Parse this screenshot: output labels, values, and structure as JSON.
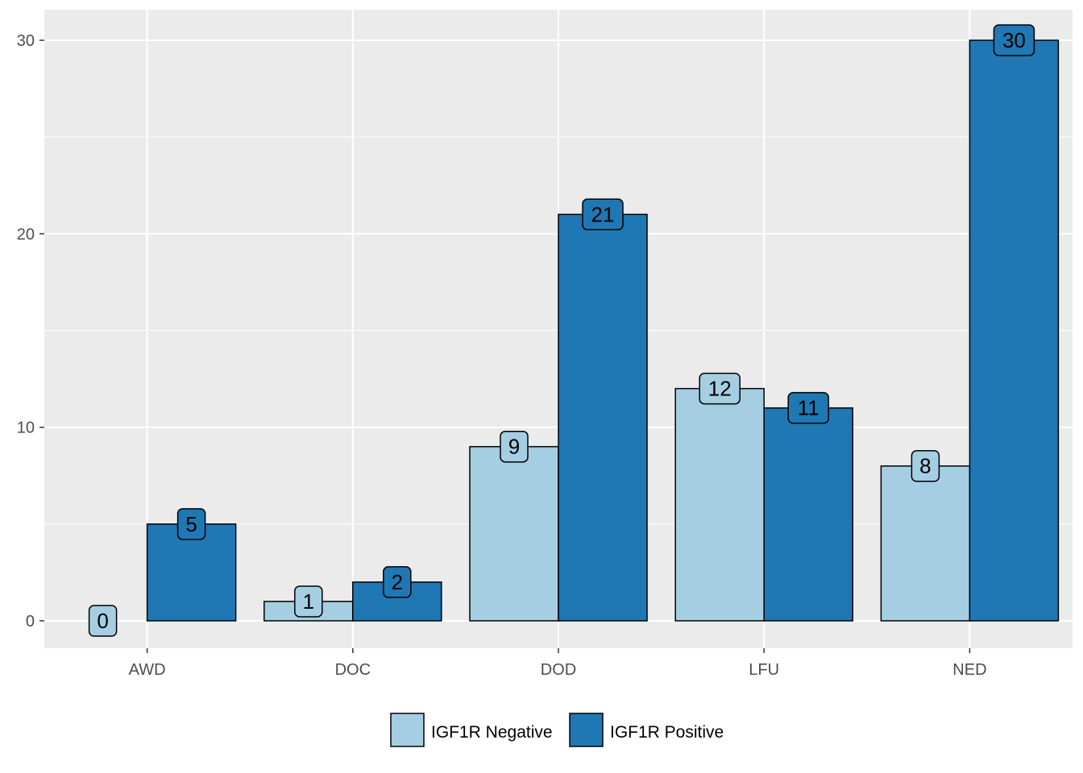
{
  "chart_data": {
    "type": "bar",
    "title": "",
    "xlabel": "",
    "ylabel": "",
    "categories": [
      "AWD",
      "DOC",
      "DOD",
      "LFU",
      "NED"
    ],
    "series": [
      {
        "name": "IGF1R Negative",
        "color": "#a6cee3",
        "values": [
          0,
          1,
          9,
          12,
          8
        ]
      },
      {
        "name": "IGF1R Positive",
        "color": "#1f78b4",
        "values": [
          5,
          2,
          21,
          11,
          30
        ]
      }
    ],
    "ylim": [
      -1.5,
      31.5
    ],
    "yticks": [
      0,
      10,
      20,
      30
    ],
    "grid": true,
    "legend_position": "bottom"
  }
}
